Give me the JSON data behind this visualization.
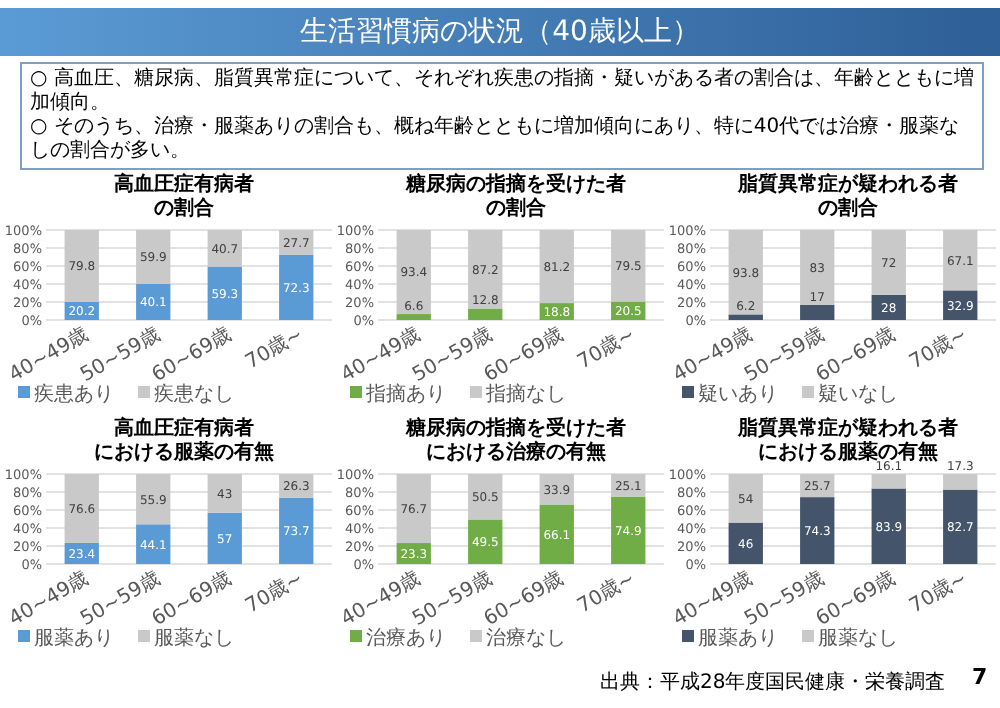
{
  "chart_data": [
    {
      "type": "other",
      "title": "生活習慣病の状況（40歳以上）",
      "annotations": [
        "○ 高血圧、糖尿病、脂質異常症について、それぞれ疾患の指摘・疑いがある者の割合は、年齢とともに増加傾向。",
        "○ そのうち、治療・服薬ありの割合も、概ね年齢とともに増加傾向にあり、特に40代では治療・服薬なしの割合が多い。",
        "出典：平成28年度国民健康・栄養調査",
        "7"
      ]
    },
    {
      "type": "bar",
      "title": "高血圧症有病者",
      "subtitle": "の割合",
      "categories": [
        "40~49歳",
        "50~59歳",
        "60~69歳",
        "70歳~"
      ],
      "stacked": true,
      "ylim": [
        0,
        100
      ],
      "yticks": [
        {
          "value": 0,
          "label": "0%"
        },
        {
          "value": 20,
          "label": "20%"
        },
        {
          "value": 40,
          "label": "40%"
        },
        {
          "value": 60,
          "label": "60%"
        },
        {
          "value": 80,
          "label": "80%"
        },
        {
          "value": 100,
          "label": "100%"
        }
      ],
      "grid": "y",
      "legend": "bottom",
      "data_labels": true,
      "series": [
        {
          "name": "疾患あり",
          "color": "#5b9bd5",
          "values": [
            20.2,
            40.1,
            59.3,
            72.3
          ]
        },
        {
          "name": "疾患なし",
          "color": "#c9c9c9",
          "values": [
            79.8,
            59.9,
            40.7,
            27.7
          ]
        }
      ]
    },
    {
      "type": "bar",
      "title": "糖尿病の指摘を受けた者",
      "subtitle": "の割合",
      "categories": [
        "40~49歳",
        "50~59歳",
        "60~69歳",
        "70歳~"
      ],
      "stacked": true,
      "ylim": [
        0,
        100
      ],
      "yticks": [
        {
          "value": 0,
          "label": "0%"
        },
        {
          "value": 20,
          "label": "20%"
        },
        {
          "value": 40,
          "label": "40%"
        },
        {
          "value": 60,
          "label": "60%"
        },
        {
          "value": 80,
          "label": "80%"
        },
        {
          "value": 100,
          "label": "100%"
        }
      ],
      "grid": "y",
      "legend": "bottom",
      "data_labels": true,
      "series": [
        {
          "name": "指摘あり",
          "color": "#70ad47",
          "values": [
            6.6,
            12.8,
            18.8,
            20.5
          ]
        },
        {
          "name": "指摘なし",
          "color": "#c9c9c9",
          "values": [
            93.4,
            87.2,
            81.2,
            79.5
          ]
        }
      ]
    },
    {
      "type": "bar",
      "title": "脂質異常症が疑われる者",
      "subtitle": "の割合",
      "categories": [
        "40~49歳",
        "50~59歳",
        "60~69歳",
        "70歳~"
      ],
      "stacked": true,
      "ylim": [
        0,
        100
      ],
      "yticks": [
        {
          "value": 0,
          "label": "0%"
        },
        {
          "value": 20,
          "label": "20%"
        },
        {
          "value": 40,
          "label": "40%"
        },
        {
          "value": 60,
          "label": "60%"
        },
        {
          "value": 80,
          "label": "80%"
        },
        {
          "value": 100,
          "label": "100%"
        }
      ],
      "grid": "y",
      "legend": "bottom",
      "data_labels": true,
      "series": [
        {
          "name": "疑いあり",
          "color": "#44546a",
          "values": [
            6.2,
            17.0,
            28.0,
            32.9
          ]
        },
        {
          "name": "疑いなし",
          "color": "#c9c9c9",
          "values": [
            93.8,
            83.0,
            72.0,
            67.1
          ]
        }
      ]
    },
    {
      "type": "bar",
      "title": "高血圧症有病者",
      "subtitle": "における服薬の有無",
      "categories": [
        "40~49歳",
        "50~59歳",
        "60~69歳",
        "70歳~"
      ],
      "stacked": true,
      "ylim": [
        0,
        100
      ],
      "yticks": [
        {
          "value": 0,
          "label": "0%"
        },
        {
          "value": 20,
          "label": "20%"
        },
        {
          "value": 40,
          "label": "40%"
        },
        {
          "value": 60,
          "label": "60%"
        },
        {
          "value": 80,
          "label": "80%"
        },
        {
          "value": 100,
          "label": "100%"
        }
      ],
      "grid": "y",
      "legend": "bottom",
      "data_labels": true,
      "series": [
        {
          "name": "服薬あり",
          "color": "#5b9bd5",
          "values": [
            23.4,
            44.1,
            57,
            73.7
          ]
        },
        {
          "name": "服薬なし",
          "color": "#c9c9c9",
          "values": [
            76.6,
            55.9,
            43,
            26.3
          ]
        }
      ]
    },
    {
      "type": "bar",
      "title": "糖尿病の指摘を受けた者",
      "subtitle": "における治療の有無",
      "categories": [
        "40~49歳",
        "50~59歳",
        "60~69歳",
        "70歳~"
      ],
      "stacked": true,
      "ylim": [
        0,
        100
      ],
      "yticks": [
        {
          "value": 0,
          "label": "0%"
        },
        {
          "value": 20,
          "label": "20%"
        },
        {
          "value": 40,
          "label": "40%"
        },
        {
          "value": 60,
          "label": "60%"
        },
        {
          "value": 80,
          "label": "80%"
        },
        {
          "value": 100,
          "label": "100%"
        }
      ],
      "grid": "y",
      "legend": "bottom",
      "data_labels": true,
      "series": [
        {
          "name": "治療あり",
          "color": "#70ad47",
          "values": [
            23.3,
            49.5,
            66.1,
            74.9
          ]
        },
        {
          "name": "治療なし",
          "color": "#c9c9c9",
          "values": [
            76.7,
            50.5,
            33.9,
            25.1
          ]
        }
      ]
    },
    {
      "type": "bar",
      "title": "脂質異常症が疑われる者",
      "subtitle": "における服薬の有無",
      "categories": [
        "40~49歳",
        "50~59歳",
        "60~69歳",
        "70歳~"
      ],
      "stacked": true,
      "ylim": [
        0,
        100
      ],
      "yticks": [
        {
          "value": 0,
          "label": "0%"
        },
        {
          "value": 20,
          "label": "20%"
        },
        {
          "value": 40,
          "label": "40%"
        },
        {
          "value": 60,
          "label": "60%"
        },
        {
          "value": 80,
          "label": "80%"
        },
        {
          "value": 100,
          "label": "100%"
        }
      ],
      "grid": "y",
      "legend": "bottom",
      "data_labels": true,
      "series": [
        {
          "name": "服薬あり",
          "color": "#44546a",
          "values": [
            46,
            74.3,
            83.9,
            82.7
          ]
        },
        {
          "name": "服薬なし",
          "color": "#c9c9c9",
          "values": [
            54,
            25.7,
            16.1,
            17.3
          ]
        }
      ]
    }
  ]
}
